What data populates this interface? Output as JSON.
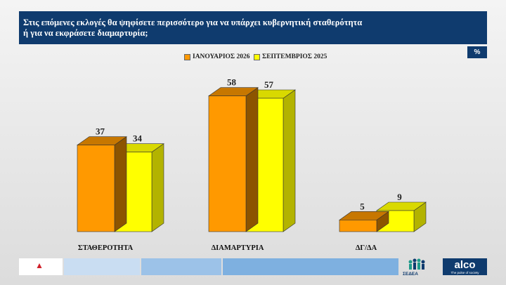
{
  "header": {
    "line1": "Στις επόμενες εκλογές θα ψηφίσετε περισσότερο για να υπάρχει κυβερνητική σταθερότητα",
    "line2": "ή για να εκφράσετε διαμαρτυρία;"
  },
  "percent_badge": "%",
  "chart_data": {
    "type": "bar",
    "title": "Στις επόμενες εκλογές θα ψηφίσετε περισσότερο για να υπάρχει κυβερνητική σταθερότητα ή για να εκφράσετε διαμαρτυρία;",
    "categories": [
      "ΣΤΑΘΕΡΟΤΗΤΑ",
      "ΔΙΑΜΑΡΤΥΡΙΑ",
      "ΔΓ/ΔΑ"
    ],
    "series": [
      {
        "name": "ΙΑΝΟΥΑΡΙΟΣ 2026",
        "values": [
          37,
          58,
          5
        ],
        "color": "#ff9900"
      },
      {
        "name": "ΣΕΠΤΕΜΒΡΙΟΣ 2025",
        "values": [
          34,
          57,
          9
        ],
        "color": "#ffff00"
      }
    ],
    "ylim": [
      0,
      60
    ],
    "legend_position": "top",
    "grid": false
  },
  "footer": {
    "brand_name": "alco",
    "brand_tagline": "The pulse of society",
    "partner_name": "ΣΕΔΕΑ",
    "colors": [
      "#ffffff",
      "#c9ddf2",
      "#9cc2e8",
      "#7eb0e0"
    ]
  }
}
